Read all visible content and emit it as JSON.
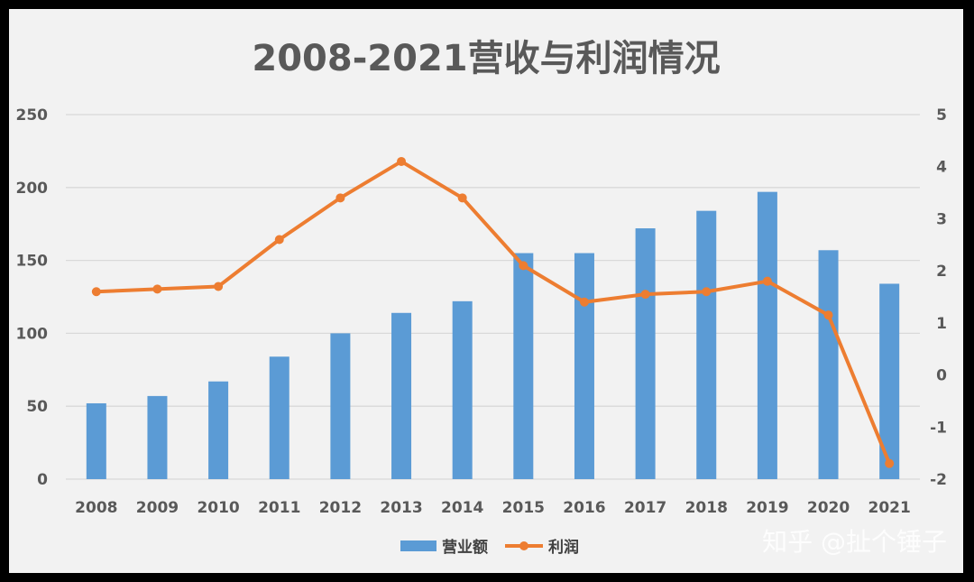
{
  "chart_data": {
    "type": "bar+line",
    "title": "2008-2021营收与利润情况",
    "categories": [
      "2008",
      "2009",
      "2010",
      "2011",
      "2012",
      "2013",
      "2014",
      "2015",
      "2016",
      "2017",
      "2018",
      "2019",
      "2020",
      "2021"
    ],
    "series": [
      {
        "name": "营业额",
        "type": "bar",
        "axis": "left",
        "color": "#5b9bd5",
        "values": [
          52,
          57,
          67,
          84,
          100,
          114,
          122,
          155,
          155,
          172,
          184,
          197,
          157,
          134
        ]
      },
      {
        "name": "利润",
        "type": "line",
        "axis": "right",
        "color": "#ed7d31",
        "values": [
          1.6,
          1.65,
          1.7,
          2.6,
          3.4,
          4.1,
          3.4,
          2.1,
          1.4,
          1.55,
          1.6,
          1.8,
          1.15,
          -1.7
        ]
      }
    ],
    "y_left": {
      "min": 0,
      "max": 250,
      "ticks": [
        "0",
        "50",
        "100",
        "150",
        "200",
        "250"
      ]
    },
    "y_right": {
      "min": -2,
      "max": 5,
      "ticks": [
        "-2",
        "-1",
        "0",
        "1",
        "2",
        "3",
        "4",
        "5"
      ]
    },
    "grid": true,
    "legend": "bottom"
  },
  "watermark": "知乎 @扯个锤子"
}
